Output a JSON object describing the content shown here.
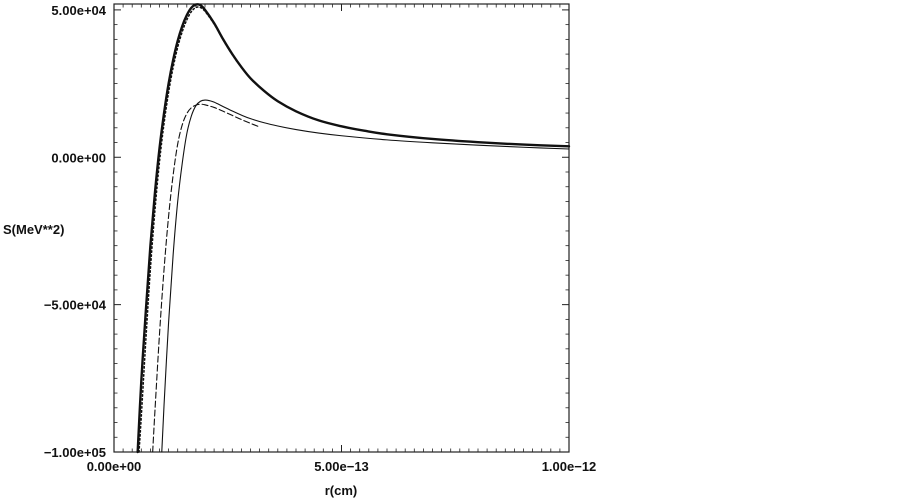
{
  "chart_data": {
    "type": "line",
    "title": "",
    "xlabel": "r(cm)",
    "ylabel": "S(MeV**2)",
    "xlim": [
      0,
      1e-12
    ],
    "ylim": [
      -100000,
      52000
    ],
    "x_ticks": [
      {
        "value": 0,
        "label": "0.00e+00"
      },
      {
        "value": 5e-13,
        "label": "5.00e−13"
      },
      {
        "value": 1e-12,
        "label": "1.00e−12"
      }
    ],
    "y_ticks": [
      {
        "value": 50000,
        "label": "5.00e+04"
      },
      {
        "value": 0,
        "label": "0.00e+00"
      },
      {
        "value": -50000,
        "label": "−5.00e+04"
      },
      {
        "value": -100000,
        "label": "−1.00e+05"
      }
    ],
    "grid": false,
    "legend": "none",
    "series": [
      {
        "style": "thick-solid",
        "x": [
          5.2e-14,
          6e-14,
          7e-14,
          8e-14,
          9e-14,
          1e-13,
          1.1e-13,
          1.2e-13,
          1.3e-13,
          1.4e-13,
          1.5e-13,
          1.6e-13,
          1.7e-13,
          1.8e-13,
          1.9e-13,
          2e-13,
          2.2e-13,
          2.4e-13,
          2.6e-13,
          2.8e-13,
          3e-13,
          3.3e-13,
          3.6e-13,
          4e-13,
          4.5e-13,
          5e-13,
          5.5e-13,
          6e-13,
          7e-13,
          8e-13,
          9e-13,
          1e-12
        ],
        "y": [
          -100000,
          -76000,
          -52000,
          -30000,
          -12000,
          3000,
          15000,
          25000,
          33000,
          39500,
          44500,
          48200,
          50700,
          51800,
          51600,
          50000,
          45500,
          40000,
          35000,
          30600,
          26800,
          22500,
          19000,
          15600,
          12500,
          10500,
          9000,
          7800,
          6200,
          5100,
          4300,
          3700
        ]
      },
      {
        "style": "dotted",
        "x": [
          5.5e-14,
          6e-14,
          7e-14,
          8e-14,
          9e-14,
          1e-13,
          1.1e-13,
          1.2e-13,
          1.3e-13,
          1.4e-13,
          1.5e-13,
          1.6e-13,
          1.7e-13,
          1.8e-13,
          1.9e-13,
          2e-13,
          2.2e-13,
          2.4e-13,
          2.6e-13,
          2.8e-13,
          3e-13
        ],
        "y": [
          -100000,
          -88000,
          -62000,
          -38000,
          -18000,
          -1500,
          11500,
          22000,
          30500,
          37300,
          42600,
          46600,
          49400,
          50800,
          50800,
          49500,
          45200,
          39800,
          34800,
          30500,
          26700
        ]
      },
      {
        "style": "dashed",
        "x": [
          8.5e-14,
          9e-14,
          1e-13,
          1.1e-13,
          1.2e-13,
          1.3e-13,
          1.4e-13,
          1.5e-13,
          1.6e-13,
          1.7e-13,
          1.8e-13,
          1.9e-13,
          2e-13,
          2.2e-13,
          2.4e-13,
          2.6e-13,
          2.8e-13,
          3e-13,
          3.2e-13
        ],
        "y": [
          -100000,
          -86000,
          -60000,
          -38000,
          -20000,
          -6000,
          4500,
          11000,
          14800,
          16800,
          17700,
          18000,
          17800,
          16900,
          15600,
          14200,
          12800,
          11500,
          10300
        ]
      },
      {
        "style": "thin-solid",
        "x": [
          1.05e-13,
          1.1e-13,
          1.2e-13,
          1.3e-13,
          1.4e-13,
          1.5e-13,
          1.6e-13,
          1.7e-13,
          1.8e-13,
          1.9e-13,
          2e-13,
          2.1e-13,
          2.2e-13,
          2.4e-13,
          2.6e-13,
          2.8e-13,
          3e-13,
          3.3e-13,
          3.6e-13,
          4e-13,
          4.5e-13,
          5e-13,
          6e-13,
          7e-13,
          8e-13,
          9e-13,
          1e-12
        ],
        "y": [
          -100000,
          -84000,
          -56000,
          -33000,
          -15000,
          -2000,
          8000,
          14000,
          17500,
          19000,
          19400,
          19200,
          18700,
          17200,
          15700,
          14300,
          13100,
          11700,
          10600,
          9400,
          8200,
          7300,
          5900,
          4900,
          4100,
          3400,
          2800
        ]
      }
    ]
  }
}
